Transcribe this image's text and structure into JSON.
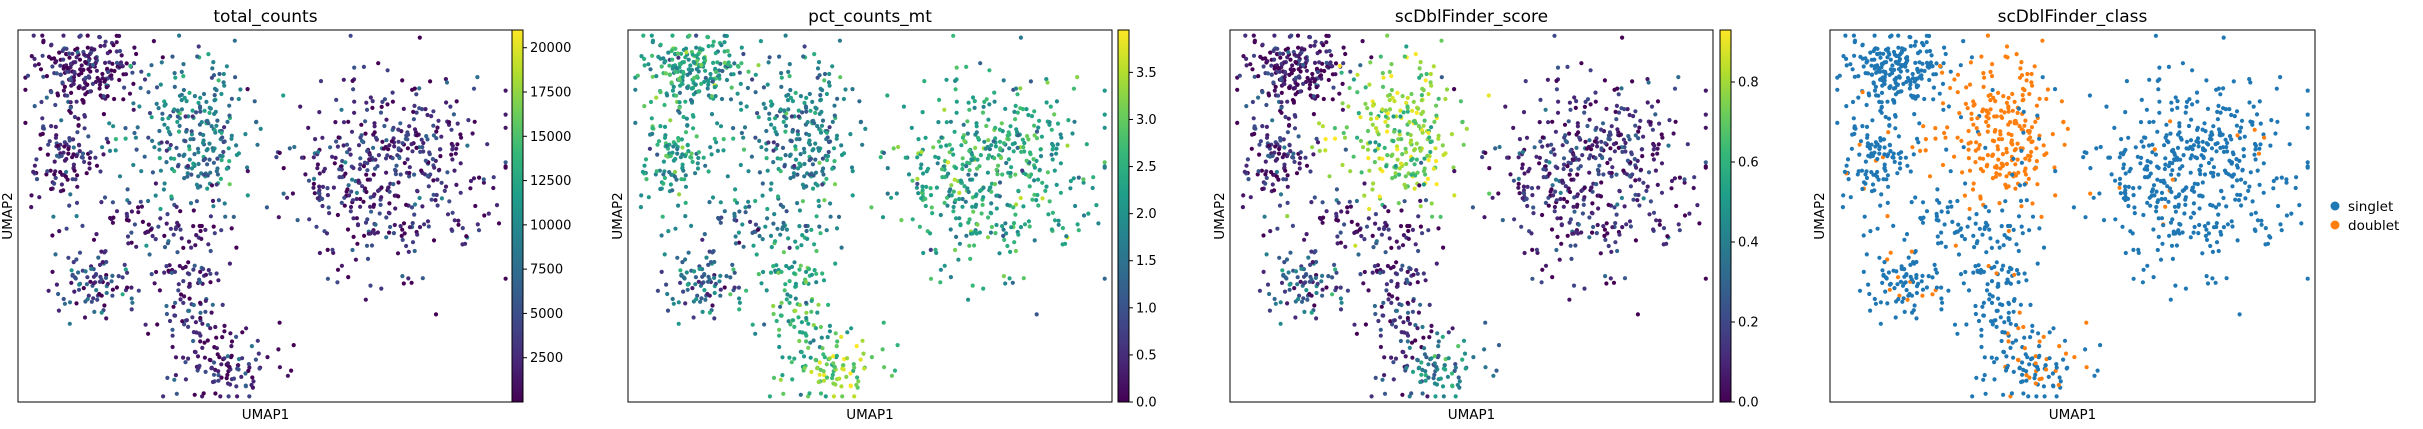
{
  "chart_data": [
    {
      "type": "scatter",
      "title": "total_counts",
      "xlabel": "UMAP1",
      "ylabel": "UMAP2",
      "colorbar": {
        "colormap": "viridis",
        "range": [
          0,
          21000
        ],
        "ticks": [
          {
            "value": 2500,
            "label": "2500"
          },
          {
            "value": 5000,
            "label": "5000"
          },
          {
            "value": 7500,
            "label": "7500"
          },
          {
            "value": 10000,
            "label": "10000"
          },
          {
            "value": 12500,
            "label": "12500"
          },
          {
            "value": 15000,
            "label": "15000"
          },
          {
            "value": 17500,
            "label": "17500"
          },
          {
            "value": 20000,
            "label": "20000"
          }
        ]
      },
      "cluster_levels": [
        0.05,
        0.1,
        0.42,
        0.12,
        0.22,
        0.12,
        0.1,
        0.1
      ]
    },
    {
      "type": "scatter",
      "title": "pct_counts_mt",
      "xlabel": "UMAP1",
      "ylabel": "UMAP2",
      "colorbar": {
        "colormap": "viridis",
        "range": [
          0,
          3.95
        ],
        "ticks": [
          {
            "value": 0,
            "label": "0.0"
          },
          {
            "value": 0.5,
            "label": "0.5"
          },
          {
            "value": 1.0,
            "label": "1.0"
          },
          {
            "value": 1.5,
            "label": "1.5"
          },
          {
            "value": 2.0,
            "label": "2.0"
          },
          {
            "value": 2.5,
            "label": "2.5"
          },
          {
            "value": 3.0,
            "label": "3.0"
          },
          {
            "value": 3.5,
            "label": "3.5"
          }
        ]
      },
      "cluster_levels": [
        0.55,
        0.55,
        0.45,
        0.58,
        0.35,
        0.6,
        0.8,
        0.35
      ]
    },
    {
      "type": "scatter",
      "title": "scDblFinder_score",
      "xlabel": "UMAP1",
      "ylabel": "UMAP2",
      "colorbar": {
        "colormap": "viridis",
        "range": [
          0,
          0.93
        ],
        "ticks": [
          {
            "value": 0.0,
            "label": "0.0"
          },
          {
            "value": 0.2,
            "label": "0.2"
          },
          {
            "value": 0.4,
            "label": "0.4"
          },
          {
            "value": 0.6,
            "label": "0.6"
          },
          {
            "value": 0.8,
            "label": "0.8"
          }
        ]
      },
      "cluster_levels": [
        0.05,
        0.12,
        0.82,
        0.12,
        0.3,
        0.12,
        0.45,
        0.1
      ]
    },
    {
      "type": "scatter",
      "title": "scDblFinder_class",
      "xlabel": "UMAP1",
      "ylabel": "UMAP2",
      "legend": {
        "position": "right",
        "entries": [
          {
            "label": "singlet",
            "color": "#1f77b4"
          },
          {
            "label": "doublet",
            "color": "#ff7f0e"
          }
        ]
      },
      "cluster_doublet_fraction": [
        0.0,
        0.02,
        0.9,
        0.03,
        0.12,
        0.04,
        0.3,
        0.0
      ]
    }
  ]
}
